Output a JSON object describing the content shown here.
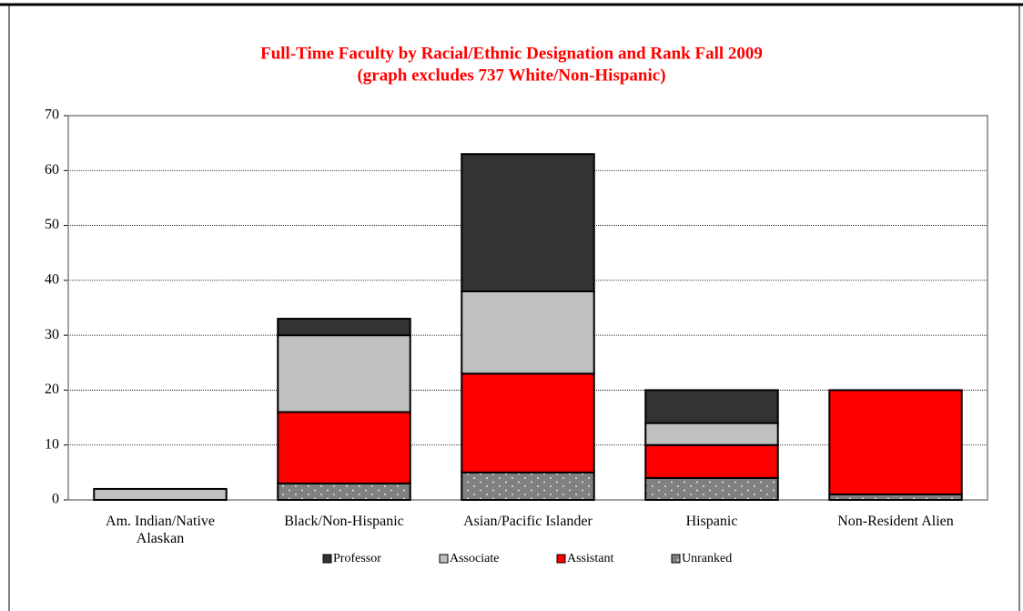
{
  "chart_data": {
    "type": "stacked_bar",
    "title": "Full-Time Faculty by Racial/Ethnic Designation and Rank Fall 2009",
    "subtitle": "(graph excludes 737 White/Non-Hispanic)",
    "categories": [
      "Am. Indian/Native Alaskan",
      "Black/Non-Hispanic",
      "Asian/Pacific Islander",
      "Hispanic",
      "Non-Resident Alien"
    ],
    "series": [
      {
        "name": "Professor",
        "color": "#333333",
        "values": [
          0,
          3,
          25,
          6,
          0
        ]
      },
      {
        "name": "Associate",
        "color": "#c0c0c0",
        "values": [
          2,
          14,
          15,
          4,
          0
        ]
      },
      {
        "name": "Assistant",
        "color": "#ff0000",
        "values": [
          0,
          13,
          18,
          6,
          19
        ]
      },
      {
        "name": "Unranked",
        "color": "#808080",
        "values": [
          0,
          3,
          5,
          4,
          1
        ]
      }
    ],
    "ylim": [
      0,
      70
    ],
    "yticks": [
      0,
      10,
      20,
      30,
      40,
      50,
      60,
      70
    ],
    "grid": true,
    "legend": "bottom"
  }
}
